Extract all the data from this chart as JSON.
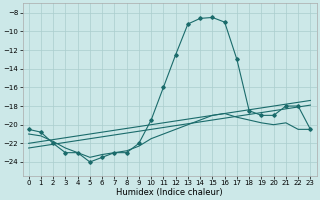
{
  "xlabel": "Humidex (Indice chaleur)",
  "background_color": "#cce8e8",
  "grid_color": "#aacece",
  "line_color": "#1a6b6b",
  "xlim": [
    -0.5,
    23.5
  ],
  "ylim": [
    -25.5,
    -7.0
  ],
  "xticks": [
    0,
    1,
    2,
    3,
    4,
    5,
    6,
    7,
    8,
    9,
    10,
    11,
    12,
    13,
    14,
    15,
    16,
    17,
    18,
    19,
    20,
    21,
    22,
    23
  ],
  "yticks": [
    -8,
    -10,
    -12,
    -14,
    -16,
    -18,
    -20,
    -22,
    -24
  ],
  "humidex": [
    -20.5,
    -20.8,
    -22.0,
    -23.0,
    -23.0,
    -24.0,
    -23.5,
    -23.0,
    -23.0,
    -22.0,
    -19.5,
    -16.0,
    -12.5,
    -9.2,
    -8.6,
    -8.5,
    -9.0,
    -13.0,
    -18.5,
    -19.0,
    -19.0,
    -18.0,
    -18.0,
    -20.5
  ],
  "trend_linear1": [
    -22.0,
    -21.8,
    -21.6,
    -21.4,
    -21.2,
    -21.0,
    -20.8,
    -20.6,
    -20.4,
    -20.2,
    -20.0,
    -19.8,
    -19.6,
    -19.4,
    -19.2,
    -19.0,
    -18.8,
    -18.6,
    -18.4,
    -18.2,
    -18.0,
    -17.8,
    -17.6,
    -17.4
  ],
  "trend_linear2": [
    -22.5,
    -22.3,
    -22.1,
    -21.9,
    -21.7,
    -21.5,
    -21.3,
    -21.1,
    -20.9,
    -20.7,
    -20.5,
    -20.3,
    -20.1,
    -19.9,
    -19.7,
    -19.5,
    -19.3,
    -19.1,
    -18.9,
    -18.7,
    -18.5,
    -18.3,
    -18.1,
    -17.9
  ],
  "smooth_curve": [
    -21.0,
    -21.2,
    -21.8,
    -22.5,
    -23.0,
    -23.5,
    -23.2,
    -23.0,
    -22.8,
    -22.3,
    -21.5,
    -21.0,
    -20.5,
    -20.0,
    -19.5,
    -19.0,
    -18.8,
    -19.2,
    -19.5,
    -19.8,
    -20.0,
    -19.8,
    -20.5,
    -20.5
  ]
}
